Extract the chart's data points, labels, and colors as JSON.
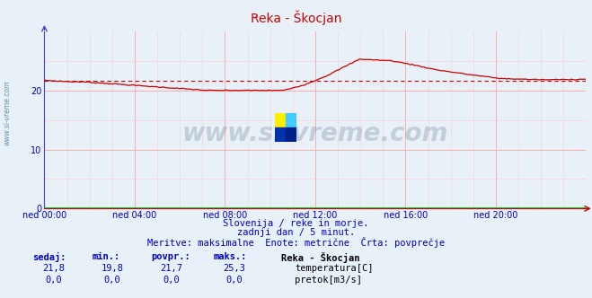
{
  "title": "Reka - Škocjan",
  "background_color": "#e8f0f8",
  "plot_bg_color": "#e8f0f8",
  "grid_color_major": "#ffaaaa",
  "grid_color_minor": "#ffcccc",
  "xlabel_ticks": [
    "ned 00:00",
    "ned 04:00",
    "ned 08:00",
    "ned 12:00",
    "ned 16:00",
    "ned 20:00"
  ],
  "ylim": [
    0,
    30
  ],
  "yticks": [
    0,
    10,
    20
  ],
  "temp_avg": 21.7,
  "subtitle1": "Slovenija / reke in morje.",
  "subtitle2": "zadnji dan / 5 minut.",
  "subtitle3": "Meritve: maksimalne  Enote: metrične  Črta: povprečje",
  "legend_title": "Reka - Škocjan",
  "legend_temp": "temperatura[C]",
  "legend_flow": "pretok[m3/s]",
  "col_headers": [
    "sedaj:",
    "min.:",
    "povpr.:",
    "maks.:"
  ],
  "row1_vals": [
    "21,8",
    "19,8",
    "21,7",
    "25,3"
  ],
  "row2_vals": [
    "0,0",
    "0,0",
    "0,0",
    "0,0"
  ],
  "temp_color": "#cc0000",
  "flow_color": "#00bb00",
  "avg_line_color": "#cc0000",
  "axis_color": "#cc0000",
  "text_color": "#0000cc",
  "watermark_color": "#1a3a5c",
  "watermark_alpha": 0.18,
  "title_color": "#cc0000",
  "left_label_color": "#0000cc",
  "spine_color": "#4444cc"
}
